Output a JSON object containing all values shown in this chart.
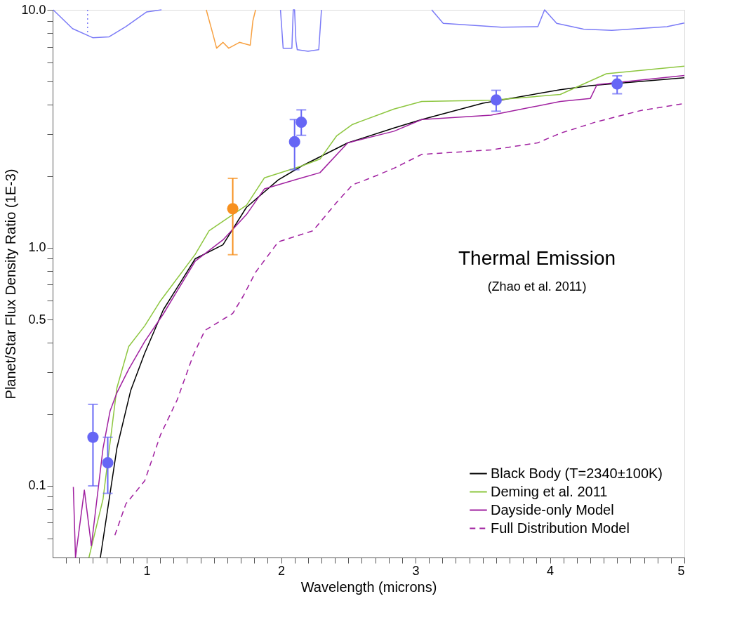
{
  "chart_data": {
    "type": "line",
    "xlabel": "Wavelength (microns)",
    "ylabel": "Planet/Star Flux Density Ratio (1E-3)",
    "annotations": [
      "Thermal Emission",
      "(Zhao et al. 2011)"
    ],
    "xlim": [
      0.3,
      5
    ],
    "ylim": [
      0.05,
      10
    ],
    "log": "y",
    "grid": false,
    "legend": "bottom right",
    "xticks": [
      {
        "value": 0.4,
        "label": null
      },
      {
        "value": 0.5,
        "label": null
      },
      {
        "value": 0.6,
        "label": null
      },
      {
        "value": 0.7,
        "label": null
      },
      {
        "value": 0.8,
        "label": null
      },
      {
        "value": 0.9,
        "label": null
      },
      1,
      {
        "value": 1.1,
        "label": null
      },
      {
        "value": 1.2,
        "label": null
      },
      {
        "value": 1.3,
        "label": null
      },
      {
        "value": 1.4,
        "label": null
      },
      {
        "value": 1.5,
        "label": null
      },
      {
        "value": 1.6,
        "label": null
      },
      {
        "value": 1.7,
        "label": null
      },
      {
        "value": 1.8,
        "label": null
      },
      {
        "value": 1.9,
        "label": null
      },
      2,
      {
        "value": 2.1,
        "label": null
      },
      {
        "value": 2.2,
        "label": null
      },
      {
        "value": 2.3,
        "label": null
      },
      {
        "value": 2.4,
        "label": null
      },
      {
        "value": 2.5,
        "label": null
      },
      {
        "value": 2.6,
        "label": null
      },
      {
        "value": 2.7,
        "label": null
      },
      {
        "value": 2.8,
        "label": null
      },
      {
        "value": 2.9,
        "label": null
      },
      3,
      {
        "value": 3.1,
        "label": null
      },
      {
        "value": 3.2,
        "label": null
      },
      {
        "value": 3.3,
        "label": null
      },
      {
        "value": 3.4,
        "label": null
      },
      {
        "value": 3.5,
        "label": null
      },
      {
        "value": 3.6,
        "label": null
      },
      {
        "value": 3.7,
        "label": null
      },
      {
        "value": 3.8,
        "label": null
      },
      {
        "value": 3.9,
        "label": null
      },
      4,
      {
        "value": 4.1,
        "label": null
      },
      {
        "value": 4.2,
        "label": null
      },
      {
        "value": 4.3,
        "label": null
      },
      {
        "value": 4.4,
        "label": null
      },
      {
        "value": 4.5,
        "label": null
      },
      {
        "value": 4.6,
        "label": null
      },
      {
        "value": 4.7,
        "label": null
      },
      {
        "value": 4.8,
        "label": null
      },
      {
        "value": 4.9,
        "label": null
      },
      5
    ],
    "yticks": [
      {
        "value": 0.06,
        "label": null
      },
      {
        "value": 0.07,
        "label": null
      },
      {
        "value": 0.08,
        "label": null
      },
      {
        "value": 0.09,
        "label": null
      },
      0.1,
      {
        "value": 0.2,
        "label": null
      },
      {
        "value": 0.3,
        "label": null
      },
      {
        "value": 0.4,
        "label": null
      },
      0.5,
      {
        "value": 0.6,
        "label": null
      },
      {
        "value": 0.7,
        "label": null
      },
      {
        "value": 0.8,
        "label": null
      },
      {
        "value": 0.9,
        "label": null
      },
      {
        "value": 1,
        "label": "1.0"
      },
      {
        "value": 2,
        "label": null
      },
      {
        "value": 3,
        "label": null
      },
      {
        "value": 4,
        "label": null
      },
      {
        "value": 5,
        "label": null
      },
      {
        "value": 6,
        "label": null
      },
      {
        "value": 7,
        "label": null
      },
      {
        "value": 8,
        "label": null
      },
      {
        "value": 9,
        "label": null
      },
      {
        "value": 10,
        "label": "10.0"
      }
    ],
    "series": [
      {
        "name": "Black Body (T=2340±100K)",
        "color": "#000000",
        "line_style": "solid",
        "x": [
          0.655,
          0.778,
          0.881,
          0.985,
          1.124,
          1.361,
          1.567,
          1.742,
          1.979,
          2.155,
          2.495,
          2.84,
          3.046,
          3.5,
          4.077,
          4.3,
          5.0
        ],
        "values": [
          0.05,
          0.144,
          0.252,
          0.361,
          0.55,
          0.9,
          1.03,
          1.48,
          1.93,
          2.21,
          2.76,
          3.19,
          3.46,
          4.05,
          4.62,
          4.8,
          5.18
        ]
      },
      {
        "name": "Deming et al. 2011",
        "color": "#8dc63f",
        "line_style": "solid",
        "x": [
          0.57,
          0.675,
          0.778,
          0.866,
          0.985,
          1.103,
          1.361,
          1.464,
          1.742,
          1.876,
          2.155,
          2.289,
          2.412,
          2.531,
          2.84,
          3.046,
          3.562,
          4.077,
          4.42,
          5.0
        ],
        "values": [
          0.05,
          0.088,
          0.258,
          0.385,
          0.47,
          0.6,
          0.94,
          1.18,
          1.51,
          1.97,
          2.21,
          2.36,
          2.95,
          3.3,
          3.83,
          4.12,
          4.17,
          4.41,
          5.39,
          5.8
        ]
      },
      {
        "name": "Dayside-only Model",
        "color": "#a020a0",
        "line_style": "solid",
        "x": [
          0.454,
          0.47,
          0.536,
          0.588,
          0.675,
          0.727,
          0.778,
          0.866,
          0.985,
          1.124,
          1.227,
          1.361,
          1.567,
          1.742,
          1.876,
          2.155,
          2.289,
          2.495,
          2.84,
          3.046,
          3.562,
          4.077,
          4.3,
          4.35,
          5.0
        ],
        "values": [
          0.099,
          0.05,
          0.096,
          0.056,
          0.144,
          0.206,
          0.246,
          0.309,
          0.404,
          0.528,
          0.66,
          0.88,
          1.08,
          1.38,
          1.77,
          1.97,
          2.07,
          2.76,
          3.09,
          3.46,
          3.61,
          4.12,
          4.24,
          4.85,
          5.3
        ]
      },
      {
        "name": "Full Distribution Model",
        "color": "#a020a0",
        "line_style": "dashed",
        "x": [
          0.763,
          0.845,
          0.985,
          1.103,
          1.227,
          1.345,
          1.433,
          1.64,
          1.72,
          1.81,
          1.979,
          2.237,
          2.412,
          2.531,
          2.67,
          2.84,
          3.046,
          3.562,
          3.907,
          4.077,
          4.335,
          4.68,
          5.0
        ],
        "values": [
          0.062,
          0.084,
          0.105,
          0.164,
          0.23,
          0.353,
          0.45,
          0.53,
          0.63,
          0.79,
          1.06,
          1.18,
          1.55,
          1.84,
          1.97,
          2.16,
          2.47,
          2.58,
          2.76,
          3.03,
          3.37,
          3.78,
          4.04
        ]
      },
      {
        "color": "#7b7bf7",
        "line_style": "solid",
        "x": [
          0.304,
          0.448,
          0.598,
          0.72,
          0.845,
          1.0,
          1.11
        ],
        "values": [
          10,
          8.34,
          7.64,
          7.7,
          8.5,
          9.8,
          10
        ]
      },
      {
        "color": "#7b7bf7",
        "line_style": "dotted",
        "x": [
          0.56,
          0.56
        ],
        "values": [
          10,
          7.9
        ]
      },
      {
        "color": "#f7a040",
        "line_style": "solid",
        "x": [
          1.443,
          1.49,
          1.52,
          1.567,
          1.61,
          1.69,
          1.77,
          1.79,
          1.81
        ],
        "values": [
          10,
          8.0,
          6.9,
          7.3,
          6.9,
          7.3,
          7.1,
          9.0,
          10
        ]
      },
      {
        "color": "#7b7bf7",
        "line_style": "solid",
        "x": [
          1.995,
          2.015,
          2.08,
          2.09,
          2.1,
          2.11,
          2.12,
          2.2,
          2.28,
          2.3
        ],
        "values": [
          10,
          6.9,
          6.9,
          10,
          10,
          7.4,
          6.8,
          6.7,
          6.8,
          10
        ]
      },
      {
        "color": "#7b7bf7",
        "line_style": "solid",
        "x": [
          3.12,
          3.206,
          3.64,
          3.91,
          3.96,
          4.05,
          4.25,
          4.46,
          4.87,
          5.0
        ],
        "values": [
          10,
          8.77,
          8.45,
          8.5,
          10,
          8.77,
          8.3,
          8.2,
          8.5,
          8.8
        ]
      },
      {
        "type": "scatter",
        "color": "#6666f5",
        "marker": "circle",
        "x": [
          0.6,
          0.71,
          2.1,
          2.15,
          3.6,
          4.5
        ],
        "values": [
          0.16,
          0.125,
          2.79,
          3.37,
          4.18,
          4.88
        ],
        "errors": [
          [
            0.1,
            0.22
          ],
          [
            0.093,
            0.16
          ],
          [
            2.13,
            3.46
          ],
          [
            2.97,
            3.8
          ],
          [
            3.75,
            4.59
          ],
          [
            4.44,
            5.28
          ]
        ]
      },
      {
        "type": "scatter",
        "color": "#f7901e",
        "marker": "circle",
        "x": [
          1.64
        ],
        "values": [
          1.46
        ],
        "errors": [
          [
            0.935,
            1.96
          ]
        ]
      }
    ]
  }
}
